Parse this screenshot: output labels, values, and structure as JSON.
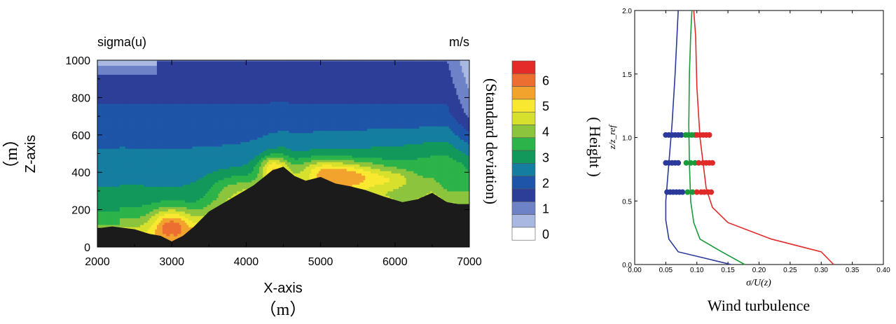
{
  "chart_data": [
    {
      "type": "heatmap",
      "title_left": "sigma(u)",
      "title_right": "m/s",
      "xlabel": "X-axis",
      "xunit": "（m）",
      "ylabel": "Z-axis",
      "yunit": "（m）",
      "xlim": [
        2000,
        7000
      ],
      "ylim": [
        0,
        1000
      ],
      "xticks": [
        "2000",
        "3000",
        "4000",
        "5000",
        "6000",
        "7000"
      ],
      "yticks": [
        "0",
        "200",
        "400",
        "600",
        "800",
        "1000"
      ],
      "colorbar": {
        "label": "(Standard deviation)",
        "tick_labels": [
          "0",
          "1",
          "2",
          "3",
          "4",
          "5",
          "6"
        ],
        "levels": [
          {
            "value": 0.0,
            "color": "#ffffff"
          },
          {
            "value": 0.5,
            "color": "#a9b8e0"
          },
          {
            "value": 1.0,
            "color": "#6e82c8"
          },
          {
            "value": 1.5,
            "color": "#2c3e98"
          },
          {
            "value": 2.0,
            "color": "#1f55a8"
          },
          {
            "value": 2.5,
            "color": "#157ea0"
          },
          {
            "value": 3.0,
            "color": "#12985a"
          },
          {
            "value": 3.5,
            "color": "#2cb34a"
          },
          {
            "value": 4.0,
            "color": "#8cc43e"
          },
          {
            "value": 4.5,
            "color": "#d8e02e"
          },
          {
            "value": 5.0,
            "color": "#f8e830"
          },
          {
            "value": 5.5,
            "color": "#f2a32e"
          },
          {
            "value": 6.0,
            "color": "#ec6e30"
          },
          {
            "value": 6.5,
            "color": "#e52a2a"
          }
        ]
      },
      "terrain": [
        [
          2000,
          100
        ],
        [
          2200,
          110
        ],
        [
          2500,
          95
        ],
        [
          2700,
          70
        ],
        [
          2850,
          60
        ],
        [
          3000,
          30
        ],
        [
          3150,
          60
        ],
        [
          3300,
          110
        ],
        [
          3500,
          190
        ],
        [
          3800,
          260
        ],
        [
          4100,
          330
        ],
        [
          4350,
          410
        ],
        [
          4500,
          430
        ],
        [
          4650,
          380
        ],
        [
          4800,
          355
        ],
        [
          5000,
          375
        ],
        [
          5200,
          340
        ],
        [
          5400,
          325
        ],
        [
          5600,
          305
        ],
        [
          5850,
          270
        ],
        [
          6100,
          240
        ],
        [
          6300,
          255
        ],
        [
          6500,
          290
        ],
        [
          6700,
          240
        ],
        [
          6850,
          230
        ],
        [
          7000,
          230
        ]
      ],
      "terrain_color": "#1b1b1b"
    },
    {
      "type": "line",
      "title": "Wind turbulence",
      "xlabel": "σ/U(z)",
      "ylabel": "z/z_ref",
      "side_label": "( Height )",
      "xlim": [
        0.0,
        0.4
      ],
      "ylim": [
        0.0,
        2.0
      ],
      "xticks": [
        "0.00",
        "0.05",
        "0.10",
        "0.15",
        "0.20",
        "0.25",
        "0.30",
        "0.35",
        "0.40"
      ],
      "yticks": [
        "0.0",
        "0.5",
        "1.0",
        "1.5",
        "2.0"
      ],
      "series": [
        {
          "color": "#2b3a9a",
          "x": [
            0.155,
            0.07,
            0.055,
            0.05,
            0.05,
            0.055,
            0.06,
            0.065,
            0.068,
            0.07
          ],
          "y": [
            0.0,
            0.1,
            0.2,
            0.35,
            0.5,
            0.8,
            1.1,
            1.5,
            1.8,
            2.0
          ]
        },
        {
          "color": "#1a9a3a",
          "x": [
            0.177,
            0.14,
            0.105,
            0.095,
            0.09,
            0.088,
            0.087,
            0.088,
            0.09,
            0.092
          ],
          "y": [
            0.0,
            0.1,
            0.2,
            0.33,
            0.5,
            0.8,
            1.1,
            1.5,
            1.8,
            2.0
          ]
        },
        {
          "color": "#e02a2a",
          "x": [
            0.32,
            0.3,
            0.22,
            0.15,
            0.125,
            0.115,
            0.105,
            0.1,
            0.098,
            0.095
          ],
          "y": [
            0.0,
            0.1,
            0.2,
            0.33,
            0.45,
            0.6,
            1.0,
            1.4,
            1.8,
            2.0
          ]
        }
      ],
      "points": [
        {
          "y": 1.02,
          "blue": [
            0.05,
            0.055,
            0.06,
            0.065,
            0.07,
            0.075
          ],
          "green": [
            0.082,
            0.087,
            0.092,
            0.097
          ],
          "red": [
            0.1,
            0.105,
            0.11,
            0.115,
            0.12
          ]
        },
        {
          "y": 0.8,
          "blue": [
            0.05,
            0.055,
            0.06,
            0.065,
            0.07
          ],
          "green": [
            0.083,
            0.09,
            0.097
          ],
          "red": [
            0.103,
            0.11,
            0.115,
            0.12,
            0.125
          ]
        },
        {
          "y": 0.57,
          "blue": [
            0.052,
            0.057,
            0.062,
            0.067,
            0.072,
            0.077
          ],
          "green": [
            0.085,
            0.093
          ],
          "red": [
            0.1,
            0.107,
            0.112,
            0.118,
            0.123
          ]
        }
      ]
    }
  ]
}
